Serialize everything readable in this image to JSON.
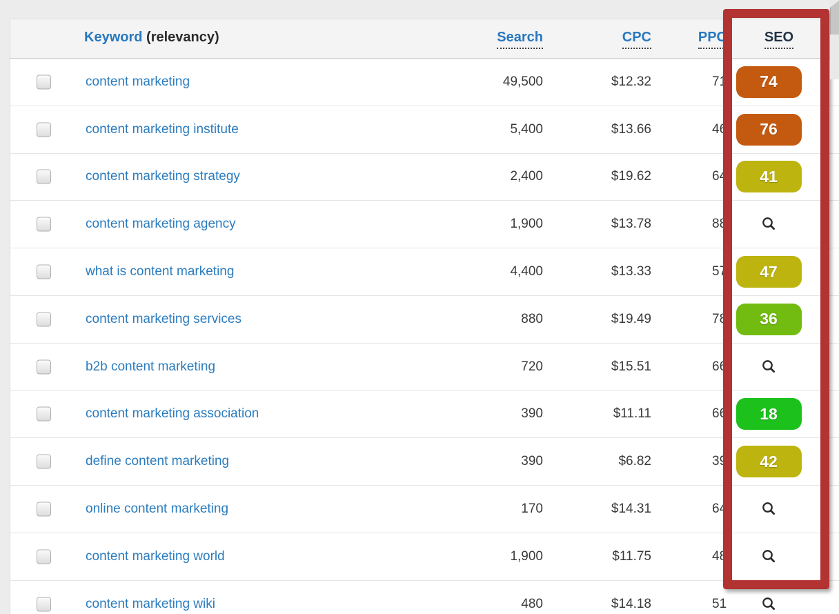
{
  "page": {
    "background_color": "#ececec"
  },
  "table": {
    "header": {
      "keyword_label": "Keyword",
      "keyword_sub": "(relevancy)",
      "search_label": "Search",
      "cpc_label": "CPC",
      "ppc_label": "PPC",
      "seo_label": "SEO"
    },
    "rows": [
      {
        "keyword": "content marketing",
        "search": "49,500",
        "cpc": "$12.32",
        "ppc": "71",
        "seo": {
          "score": "74",
          "color": "#c45a10"
        }
      },
      {
        "keyword": "content marketing institute",
        "search": "5,400",
        "cpc": "$13.66",
        "ppc": "46",
        "seo": {
          "score": "76",
          "color": "#c45a10"
        }
      },
      {
        "keyword": "content marketing strategy",
        "search": "2,400",
        "cpc": "$19.62",
        "ppc": "64",
        "seo": {
          "score": "41",
          "color": "#bdb40f"
        }
      },
      {
        "keyword": "content marketing agency",
        "search": "1,900",
        "cpc": "$13.78",
        "ppc": "88",
        "seo": {
          "icon": "magnifier"
        }
      },
      {
        "keyword": "what is content marketing",
        "search": "4,400",
        "cpc": "$13.33",
        "ppc": "57",
        "seo": {
          "score": "47",
          "color": "#bdb40f"
        }
      },
      {
        "keyword": "content marketing services",
        "search": "880",
        "cpc": "$19.49",
        "ppc": "78",
        "seo": {
          "score": "36",
          "color": "#72bb10"
        }
      },
      {
        "keyword": "b2b content marketing",
        "search": "720",
        "cpc": "$15.51",
        "ppc": "66",
        "seo": {
          "icon": "magnifier"
        }
      },
      {
        "keyword": "content marketing association",
        "search": "390",
        "cpc": "$11.11",
        "ppc": "66",
        "seo": {
          "score": "18",
          "color": "#1cc11c"
        }
      },
      {
        "keyword": "define content marketing",
        "search": "390",
        "cpc": "$6.82",
        "ppc": "39",
        "seo": {
          "score": "42",
          "color": "#bdb40f"
        }
      },
      {
        "keyword": "online content marketing",
        "search": "170",
        "cpc": "$14.31",
        "ppc": "64",
        "seo": {
          "icon": "magnifier"
        }
      },
      {
        "keyword": "content marketing world",
        "search": "1,900",
        "cpc": "$11.75",
        "ppc": "48",
        "seo": {
          "icon": "magnifier"
        }
      },
      {
        "keyword": "content marketing wiki",
        "search": "480",
        "cpc": "$14.18",
        "ppc": "51",
        "seo": {
          "icon": "magnifier"
        }
      }
    ]
  },
  "annotation": {
    "type": "highlight-rectangle",
    "highlighted_column": "SEO",
    "color": "#b23332"
  },
  "colors": {
    "link_blue": "#2b7cbe",
    "header_blue": "#2878be",
    "seo_header_dark": "#223346",
    "badge_hard_orange": "#c45a10",
    "badge_medium_olive": "#bdb40f",
    "badge_easier_green": "#72bb10",
    "badge_easy_bright_green": "#1cc11c",
    "highlight_red": "#b23332"
  }
}
